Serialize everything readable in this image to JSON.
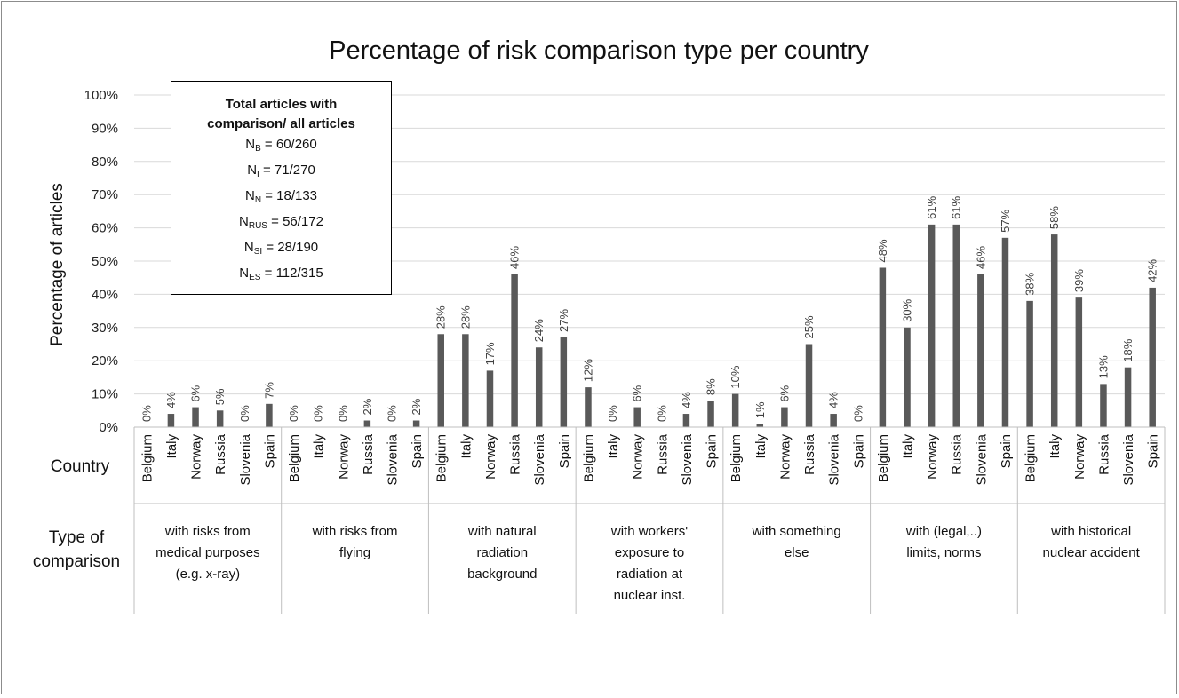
{
  "chart_data": {
    "type": "bar",
    "title": "Percentage of risk comparison type per country",
    "ylabel": "Percentage of articles",
    "ylim": [
      0,
      100
    ],
    "yticks": [
      "0%",
      "10%",
      "20%",
      "30%",
      "40%",
      "50%",
      "60%",
      "70%",
      "80%",
      "90%",
      "100%"
    ],
    "grid": true,
    "row_headers": {
      "country": "Country",
      "type_line1": "Type of",
      "type_line2": "comparison"
    },
    "countries": [
      "Belgium",
      "Italy",
      "Norway",
      "Russia",
      "Slovenia",
      "Spain"
    ],
    "groups": [
      {
        "label": [
          "with risks from",
          "medical purposes",
          "(e.g. x-ray)"
        ],
        "values": [
          0,
          4,
          6,
          5,
          0,
          7
        ],
        "labels": [
          "0%",
          "4%",
          "6%",
          "5%",
          "0%",
          "7%"
        ]
      },
      {
        "label": [
          "with risks from",
          "flying"
        ],
        "values": [
          0,
          0,
          0,
          2,
          0,
          2
        ],
        "labels": [
          "0%",
          "0%",
          "0%",
          "2%",
          "0%",
          "2%"
        ]
      },
      {
        "label": [
          "with natural",
          "radiation",
          "background"
        ],
        "values": [
          28,
          28,
          17,
          46,
          24,
          27
        ],
        "labels": [
          "28%",
          "28%",
          "17%",
          "46%",
          "24%",
          "27%"
        ]
      },
      {
        "label": [
          "with workers'",
          "exposure to",
          "radiation at",
          "nuclear inst."
        ],
        "values": [
          12,
          0,
          6,
          0,
          4,
          8
        ],
        "labels": [
          "12%",
          "0%",
          "6%",
          "0%",
          "4%",
          "8%"
        ]
      },
      {
        "label": [
          "with something",
          "else"
        ],
        "values": [
          10,
          1,
          6,
          25,
          4,
          0
        ],
        "labels": [
          "10%",
          "1%",
          "6%",
          "25%",
          "4%",
          "0%"
        ]
      },
      {
        "label": [
          "with (legal,..)",
          "limits, norms"
        ],
        "values": [
          48,
          30,
          61,
          61,
          46,
          57
        ],
        "labels": [
          "48%",
          "30%",
          "61%",
          "61%",
          "46%",
          "57%"
        ]
      },
      {
        "label": [
          "with historical",
          "nuclear accident"
        ],
        "values": [
          38,
          58,
          39,
          13,
          18,
          42
        ],
        "labels": [
          "38%",
          "58%",
          "39%",
          "13%",
          "18%",
          "42%"
        ]
      }
    ],
    "bar_color": "#595959",
    "legend": {
      "title_line1": "Total articles with",
      "title_line2": "comparison/ all articles",
      "entries": [
        {
          "symbol": "N",
          "sub": "B",
          "value": " = 60/260"
        },
        {
          "symbol": "N",
          "sub": "I",
          "value": " =  71/270"
        },
        {
          "symbol": "N",
          "sub": "N",
          "value": " = 18/133"
        },
        {
          "symbol": "N",
          "sub": "RUS",
          "value": " = 56/172"
        },
        {
          "symbol": "N",
          "sub": "SI",
          "value": " = 28/190"
        },
        {
          "symbol": "N",
          "sub": "ES",
          "value": " = 112/315"
        }
      ]
    }
  }
}
